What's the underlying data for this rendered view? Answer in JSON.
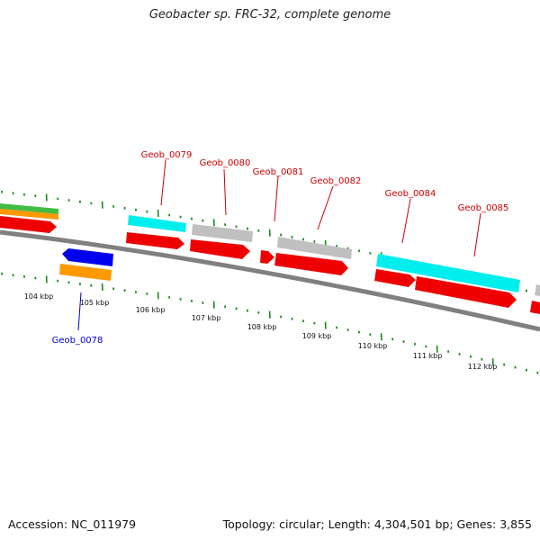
{
  "title": "Geobacter sp. FRC-32, complete genome",
  "footer": {
    "accession": "Accession: NC_011979",
    "summary": "Topology: circular; Length: 4,304,501 bp; Genes: 3,855"
  },
  "colors": {
    "backbone": "#808080",
    "tick": "#1a8a1a",
    "label_red": "#cc0000",
    "label_blue": "#0000cc",
    "cds": "#ee0000",
    "cyan": "#00eeee",
    "gray": "#c0c0c0",
    "blue": "#0000ee",
    "orange": "#ff9900",
    "green": "#44bb44"
  },
  "scale_labels": [
    "104 kbp",
    "105 kbp",
    "106 kbp",
    "107 kbp",
    "108 kbp",
    "109 kbp",
    "110 kbp",
    "111 kbp",
    "112 kbp"
  ],
  "gene_labels": [
    {
      "name": "Geob_0079",
      "color": "red"
    },
    {
      "name": "Geob_0080",
      "color": "red"
    },
    {
      "name": "Geob_0081",
      "color": "red"
    },
    {
      "name": "Geob_0082",
      "color": "red"
    },
    {
      "name": "Geob_0084",
      "color": "red"
    },
    {
      "name": "Geob_0085",
      "color": "red"
    },
    {
      "name": "Geob_0078",
      "color": "blue"
    }
  ]
}
